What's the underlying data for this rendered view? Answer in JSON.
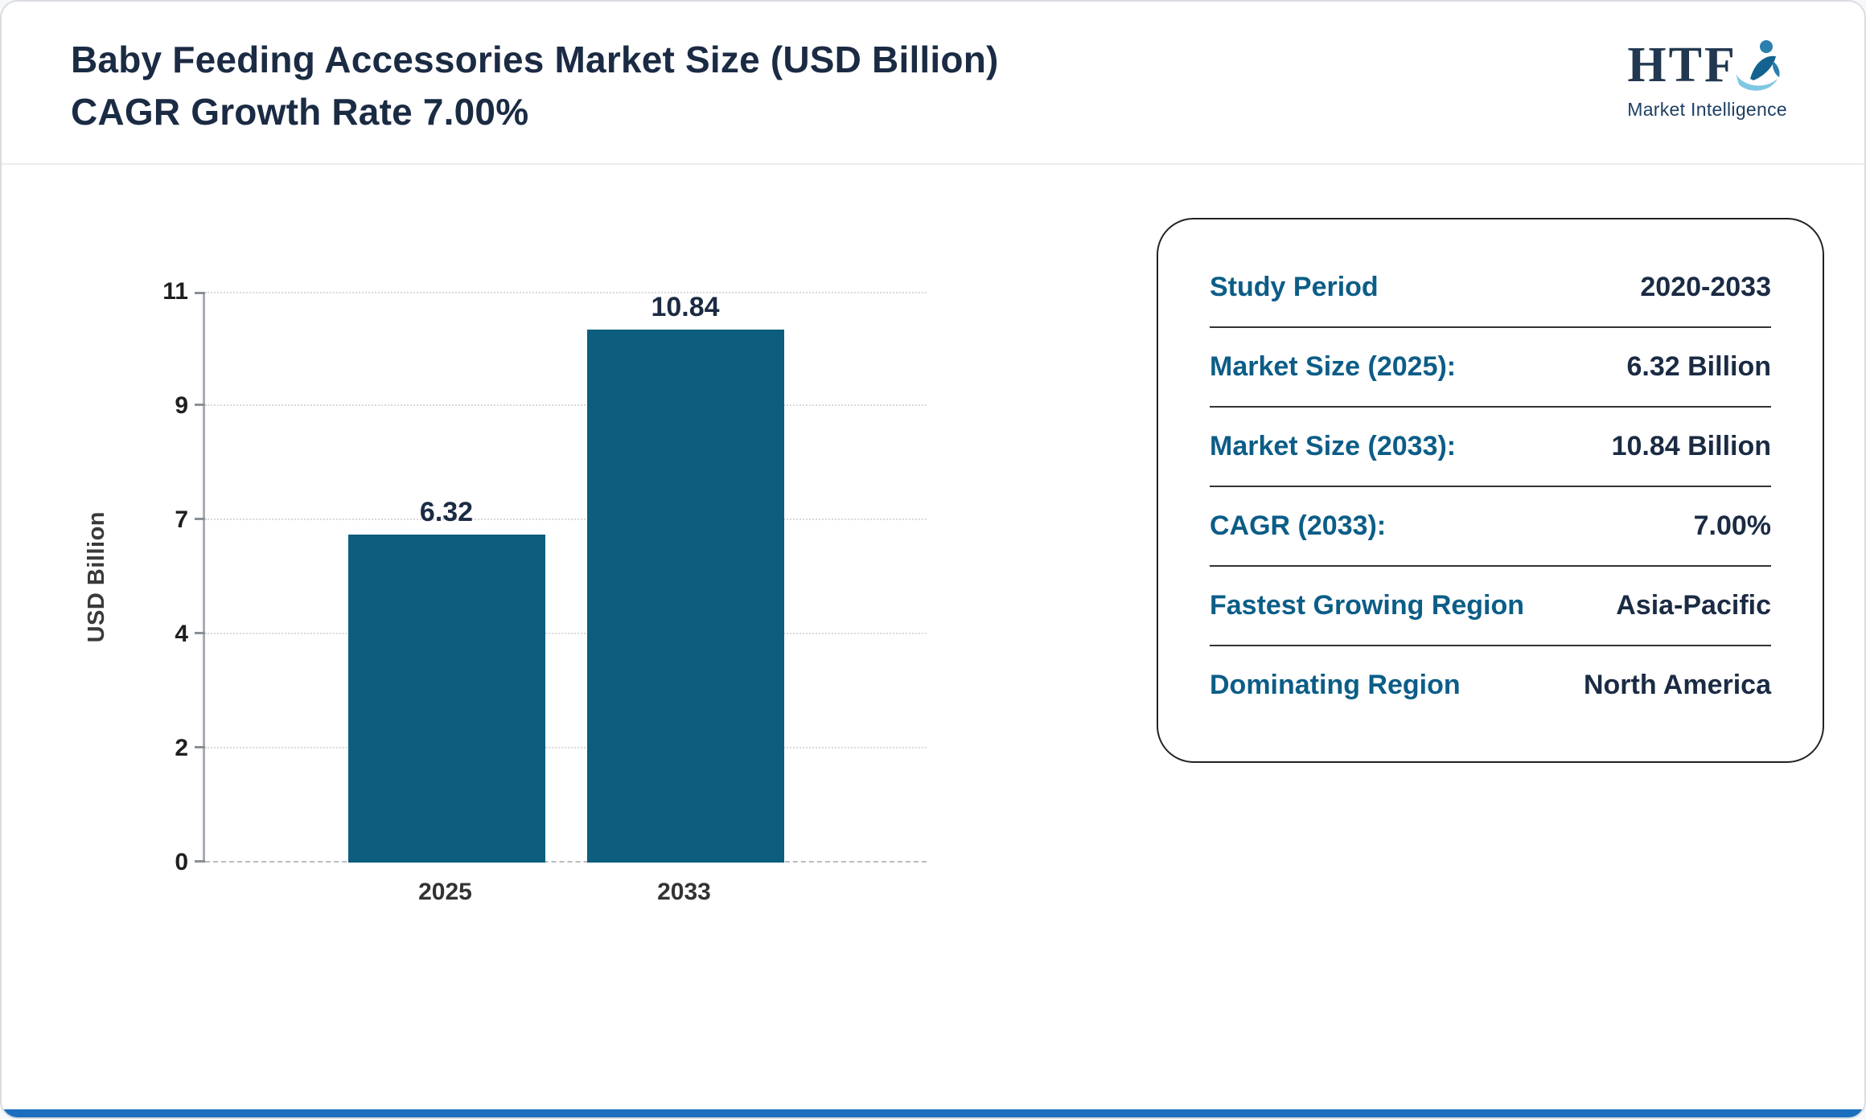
{
  "header": {
    "title": "Baby Feeding Accessories Market Size (USD Billion) CAGR Growth Rate 7.00%",
    "logo": {
      "name": "HTF",
      "tagline": "Market Intelligence"
    }
  },
  "chart_data": {
    "type": "bar",
    "title": "Baby Feeding Accessories Market Size (USD Billion) CAGR Growth Rate 7.00%",
    "categories": [
      "2025",
      "2033"
    ],
    "values": [
      6.32,
      10.84
    ],
    "data_labels": [
      "6.32",
      "10.84"
    ],
    "xlabel": "",
    "ylabel": "USD Billion",
    "ylim": [
      0,
      11
    ],
    "ytick_labels": [
      "0",
      "2",
      "4",
      "7",
      "9",
      "11"
    ],
    "grid": "horizontal-dotted",
    "legend": "none",
    "bar_color": "#0d5d7f"
  },
  "info_card": {
    "rows": [
      {
        "label": "Study Period",
        "value": "2020-2033"
      },
      {
        "label": "Market Size (2025):",
        "value": "6.32 Billion"
      },
      {
        "label": "Market Size (2033):",
        "value": "10.84 Billion"
      },
      {
        "label": "CAGR (2033):",
        "value": "7.00%"
      },
      {
        "label": "Fastest Growing Region",
        "value": "Asia-Pacific"
      },
      {
        "label": "Dominating Region",
        "value": "North America"
      }
    ]
  },
  "colors": {
    "title_text": "#1b2b44",
    "card_label_blue": "#0c5d87",
    "bar_teal": "#0d5d7f",
    "footer_accent_blue": "#1c6fbe"
  }
}
